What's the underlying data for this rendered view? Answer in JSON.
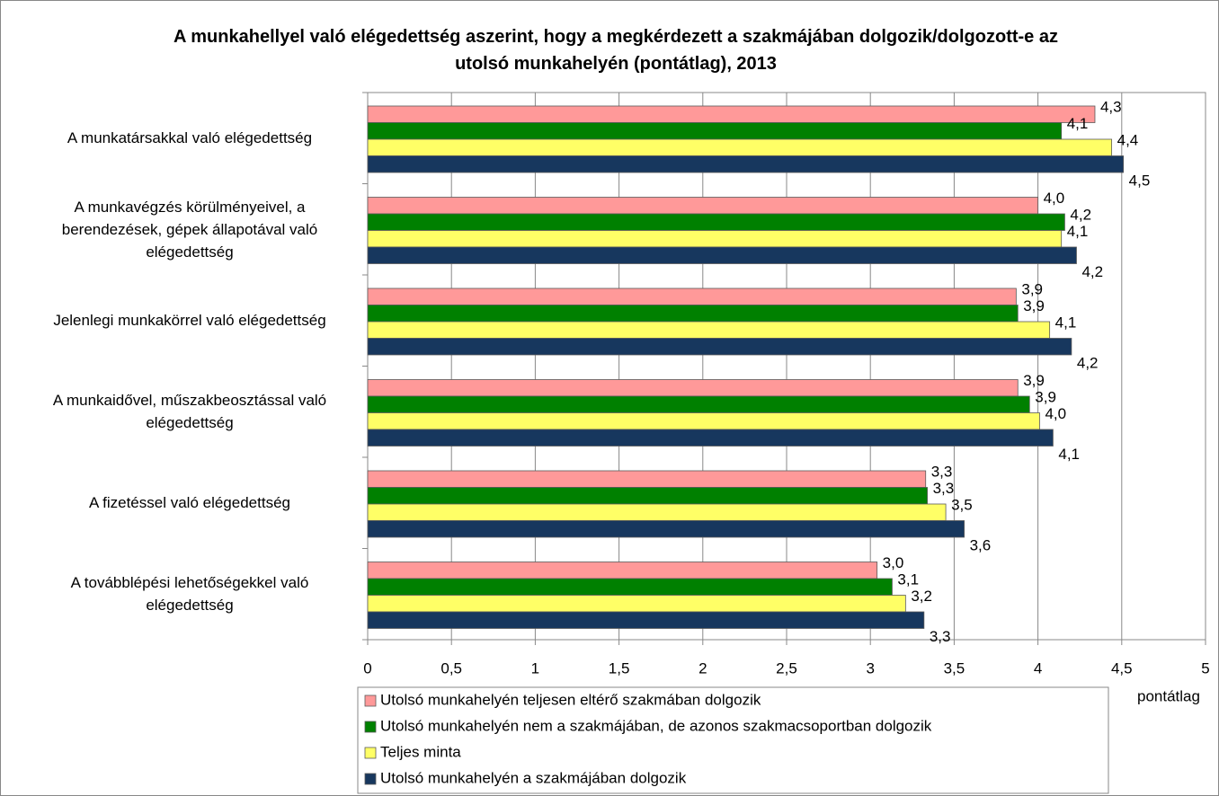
{
  "chart_data": {
    "type": "bar",
    "orientation": "horizontal",
    "title": "A munkahellyel való elégedettség aszerint, hogy a megkérdezett a szakmájában dolgozik/dolgozott-e az utolsó munkahelyén (pontátlag), 2013",
    "x_label": "pontátlag",
    "categories": [
      "A munkatársakkal való elégedettség",
      "A munkavégzés körülményeivel, a berendezések, gépek állapotával való elégedettség",
      "Jelenlegi munkakörrel való elégedettség",
      "A munkaidővel, műszakbeosztással való elégedettség",
      "A fizetéssel való elégedettség",
      "A továbblépési lehetőségekkel való elégedettség"
    ],
    "series": [
      {
        "name": "Utolsó munkahelyén teljesen eltérő szakmában dolgozik",
        "color": "#ff9999",
        "values": [
          4.34,
          4.0,
          3.87,
          3.88,
          3.33,
          3.04
        ],
        "value_labels": [
          "4,3",
          "4,0",
          "3,9",
          "3,9",
          "3,3",
          "3,0"
        ]
      },
      {
        "name": "Utolsó munkahelyén nem a szakmájában, de azonos szakmacsoportban dolgozik",
        "color": "#008000",
        "values": [
          4.14,
          4.16,
          3.88,
          3.95,
          3.34,
          3.13
        ],
        "value_labels": [
          "4,1",
          "4,2",
          "3,9",
          "3,9",
          "3,3",
          "3,1"
        ]
      },
      {
        "name": "Teljes minta",
        "color": "#ffff66",
        "values": [
          4.44,
          4.14,
          4.07,
          4.01,
          3.45,
          3.21
        ],
        "value_labels": [
          "4,4",
          "4,1",
          "4,1",
          "4,0",
          "3,5",
          "3,2"
        ]
      },
      {
        "name": "Utolsó munkahelyén a szakmájában dolgozik",
        "color": "#17375e",
        "values": [
          4.51,
          4.23,
          4.2,
          4.09,
          3.56,
          3.32
        ],
        "value_labels": [
          "4,5",
          "4,2",
          "4,2",
          "4,1",
          "3,6",
          "3,3"
        ]
      }
    ],
    "xlim": [
      0,
      5
    ],
    "xticks": [
      0,
      {
        "value": 0.5,
        "label": "0,5"
      },
      1,
      {
        "value": 1.5,
        "label": "1,5"
      },
      2,
      {
        "value": 2.5,
        "label": "2,5"
      },
      3,
      {
        "value": 3.5,
        "label": "3,5"
      },
      4,
      {
        "value": 4.5,
        "label": "4,5"
      },
      5
    ],
    "grid": true,
    "legend": "bottom"
  }
}
